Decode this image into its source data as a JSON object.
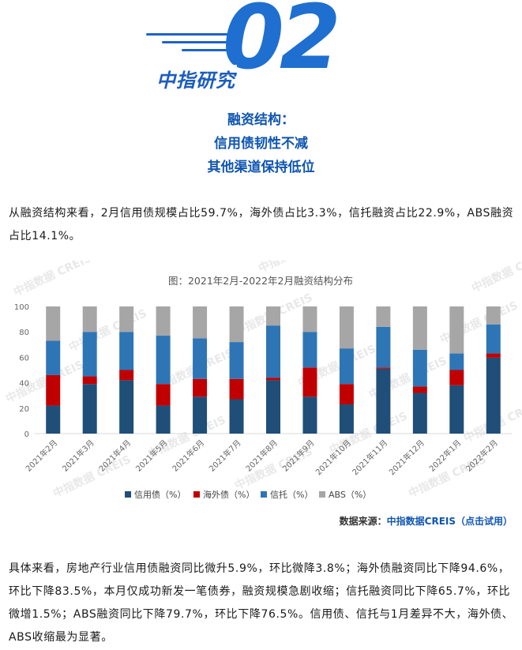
{
  "header": {
    "number": "02",
    "brand": "中指研究",
    "titles": [
      "融资结构：",
      "信用债韧性不减",
      "其他渠道保持低位"
    ]
  },
  "intro": "从融资结构来看，2月信用债规模占比59.7%，海外债占比3.3%，信托融资占比22.9%，ABS融资占比14.1%。",
  "watermark": "中指数据 CREIS",
  "chart_data": {
    "type": "bar",
    "stacked": true,
    "title": "图：2021年2月-2022年2月融资结构分布",
    "categories": [
      "2021年2月",
      "2021年3月",
      "2021年4月",
      "2021年5月",
      "2021年6月",
      "2021年7月",
      "2021年8月",
      "2021年9月",
      "2021年10月",
      "2021年11月",
      "2021年12月",
      "2022年1月",
      "2022年2月"
    ],
    "ylim": [
      0,
      100
    ],
    "yticks": [
      0,
      20,
      40,
      60,
      80,
      100
    ],
    "series": [
      {
        "name": "信用债（%）",
        "color": "#1f4e79",
        "values": [
          22,
          39,
          42,
          22,
          29,
          27,
          42,
          29,
          23,
          51,
          32,
          38,
          59.7
        ]
      },
      {
        "name": "海外债（%）",
        "color": "#c00000",
        "values": [
          24,
          6,
          8,
          17,
          14,
          16,
          2,
          23,
          16,
          1,
          5,
          12,
          3.3
        ]
      },
      {
        "name": "信托（%）",
        "color": "#2e75b6",
        "values": [
          27,
          35,
          30,
          38,
          32,
          29,
          41,
          28,
          28,
          32,
          29,
          13,
          22.9
        ]
      },
      {
        "name": "ABS（%）",
        "color": "#a6a6a6",
        "values": [
          27,
          20,
          20,
          23,
          25,
          28,
          15,
          20,
          33,
          16,
          34,
          37,
          14.1
        ]
      }
    ]
  },
  "source": {
    "label": "数据来源：",
    "link": "中指数据CREIS（点击试用）"
  },
  "detail": "具体来看，房地产行业信用债融资同比微升5.9%，环比微降3.8%；海外债融资同比下降94.6%，环比下降83.5%，本月仅成功新发一笔债券，融资规模急剧收缩；信托融资同比下降65.7%，环比微增1.5%；ABS融资同比下降79.7%，环比下降76.5%。信用债、信托与1月差异不大，海外债、ABS收缩最为显著。"
}
